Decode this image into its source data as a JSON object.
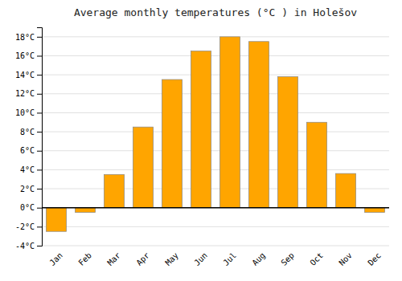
{
  "chart_data": {
    "type": "bar",
    "title": "Average monthly temperatures (°C ) in Holešov",
    "categories": [
      "Jan",
      "Feb",
      "Mar",
      "Apr",
      "May",
      "Jun",
      "Jul",
      "Aug",
      "Sep",
      "Oct",
      "Nov",
      "Dec"
    ],
    "values": [
      -2.5,
      -0.5,
      3.5,
      8.5,
      13.5,
      16.5,
      18.0,
      17.5,
      13.8,
      9.0,
      3.6,
      -0.5
    ],
    "color": "#FFA500",
    "ylim": [
      -4,
      19
    ],
    "yticks": [
      {
        "value": -4,
        "label": "-4°C"
      },
      {
        "value": -2,
        "label": "-2°C"
      },
      {
        "value": 0,
        "label": "0°C"
      },
      {
        "value": 2,
        "label": "2°C"
      },
      {
        "value": 4,
        "label": "4°C"
      },
      {
        "value": 6,
        "label": "6°C"
      },
      {
        "value": 8,
        "label": "8°C"
      },
      {
        "value": 10,
        "label": "10°C"
      },
      {
        "value": 12,
        "label": "12°C"
      },
      {
        "value": 14,
        "label": "14°C"
      },
      {
        "value": 16,
        "label": "16°C"
      },
      {
        "value": 18,
        "label": "18°C"
      }
    ],
    "grid": true
  }
}
